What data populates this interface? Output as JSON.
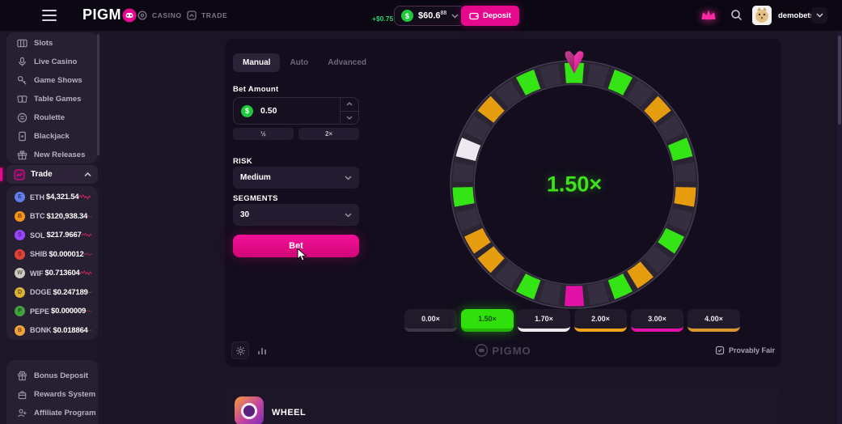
{
  "topbar": {
    "logo_text": "PIGM",
    "nav": [
      {
        "label": "CASINO"
      },
      {
        "label": "TRADE"
      }
    ],
    "balance": {
      "gain": "+$0.75",
      "amount": "$60.6",
      "amount_sup": "88",
      "coin": "$"
    },
    "deposit_label": "Deposit",
    "user": {
      "name": "demobets"
    }
  },
  "sidebar": {
    "nav": [
      {
        "label": "Slots",
        "icon": "slots-icon"
      },
      {
        "label": "Live Casino",
        "icon": "live-casino-icon"
      },
      {
        "label": "Game Shows",
        "icon": "game-shows-icon"
      },
      {
        "label": "Table Games",
        "icon": "table-games-icon"
      },
      {
        "label": "Roulette",
        "icon": "roulette-icon"
      },
      {
        "label": "Blackjack",
        "icon": "blackjack-icon"
      },
      {
        "label": "New Releases",
        "icon": "new-releases-icon"
      }
    ],
    "trade": {
      "label": "Trade",
      "coins": [
        {
          "symbol": "ETH",
          "price": "$4,321.54",
          "color": "#627eea",
          "trend": "down"
        },
        {
          "symbol": "BTC",
          "price": "$120,938.34",
          "color": "#f7931a",
          "trend": "down"
        },
        {
          "symbol": "SOL",
          "price": "$217.9667",
          "color": "#9945ff",
          "trend": "down"
        },
        {
          "symbol": "SHIB",
          "price": "$0.000012",
          "color": "#e04238",
          "trend": "down"
        },
        {
          "symbol": "WIF",
          "price": "$0.713604",
          "color": "#cfcabf",
          "trend": "down"
        },
        {
          "symbol": "DOGE",
          "price": "$0.247189",
          "color": "#d9b335",
          "trend": "up"
        },
        {
          "symbol": "PEPE",
          "price": "$0.000009",
          "color": "#41a33e",
          "trend": "down"
        },
        {
          "symbol": "BONK",
          "price": "$0.018864",
          "color": "#f2a33c",
          "trend": "up"
        }
      ],
      "trend_colors": {
        "up": "#2bd46a",
        "down": "#f5286e"
      }
    },
    "footer_nav": [
      {
        "label": "Bonus Deposit"
      },
      {
        "label": "Rewards System"
      },
      {
        "label": "Affiliate Program"
      }
    ]
  },
  "game": {
    "tabs": [
      {
        "label": "Manual",
        "selected": true
      },
      {
        "label": "Auto",
        "selected": false
      },
      {
        "label": "Advanced",
        "selected": false
      }
    ],
    "bet_amount": {
      "label": "Bet Amount",
      "value": "0.50",
      "half": "½",
      "double": "2×"
    },
    "risk": {
      "label": "RISK",
      "value": "Medium"
    },
    "segments": {
      "label": "SEGMENTS",
      "value": "30"
    },
    "bet_button": "Bet",
    "wheel": {
      "result": "1.50×",
      "palette": {
        "g": "#35e414",
        "o": "#e69c0f",
        "w": "#ece9f1",
        "p": "#e312a7",
        "d": "#352e40"
      },
      "segments": [
        "g",
        "d",
        "g",
        "d",
        "o",
        "d",
        "g",
        "d",
        "o",
        "d",
        "g",
        "d",
        "o",
        "g",
        "d",
        "p",
        "d",
        "g",
        "d",
        "o",
        "o",
        "d",
        "g",
        "d",
        "w",
        "d",
        "o",
        "d",
        "g",
        "d"
      ]
    },
    "multipliers": [
      {
        "label": "0.00×",
        "edge": "#3b3545",
        "selected": false
      },
      {
        "label": "1.50×",
        "edge": "#22b406",
        "selected": true
      },
      {
        "label": "1.70×",
        "edge": "#ece9f1",
        "selected": false
      },
      {
        "label": "2.00×",
        "edge": "#eda31a",
        "selected": false
      },
      {
        "label": "3.00×",
        "edge": "#e312a7",
        "selected": false
      },
      {
        "label": "4.00×",
        "edge": "#d9982f",
        "selected": false
      }
    ],
    "footer": {
      "watermark": "PIGMO",
      "provably_fair": "Provably Fair"
    }
  },
  "below": {
    "title": "WHEEL"
  },
  "colors": {
    "accent_pink": "#e6098e",
    "win_green": "#3ee21c",
    "gain_green": "#2bd46a",
    "panel": "#272033",
    "game_panel": "#130d1d"
  }
}
